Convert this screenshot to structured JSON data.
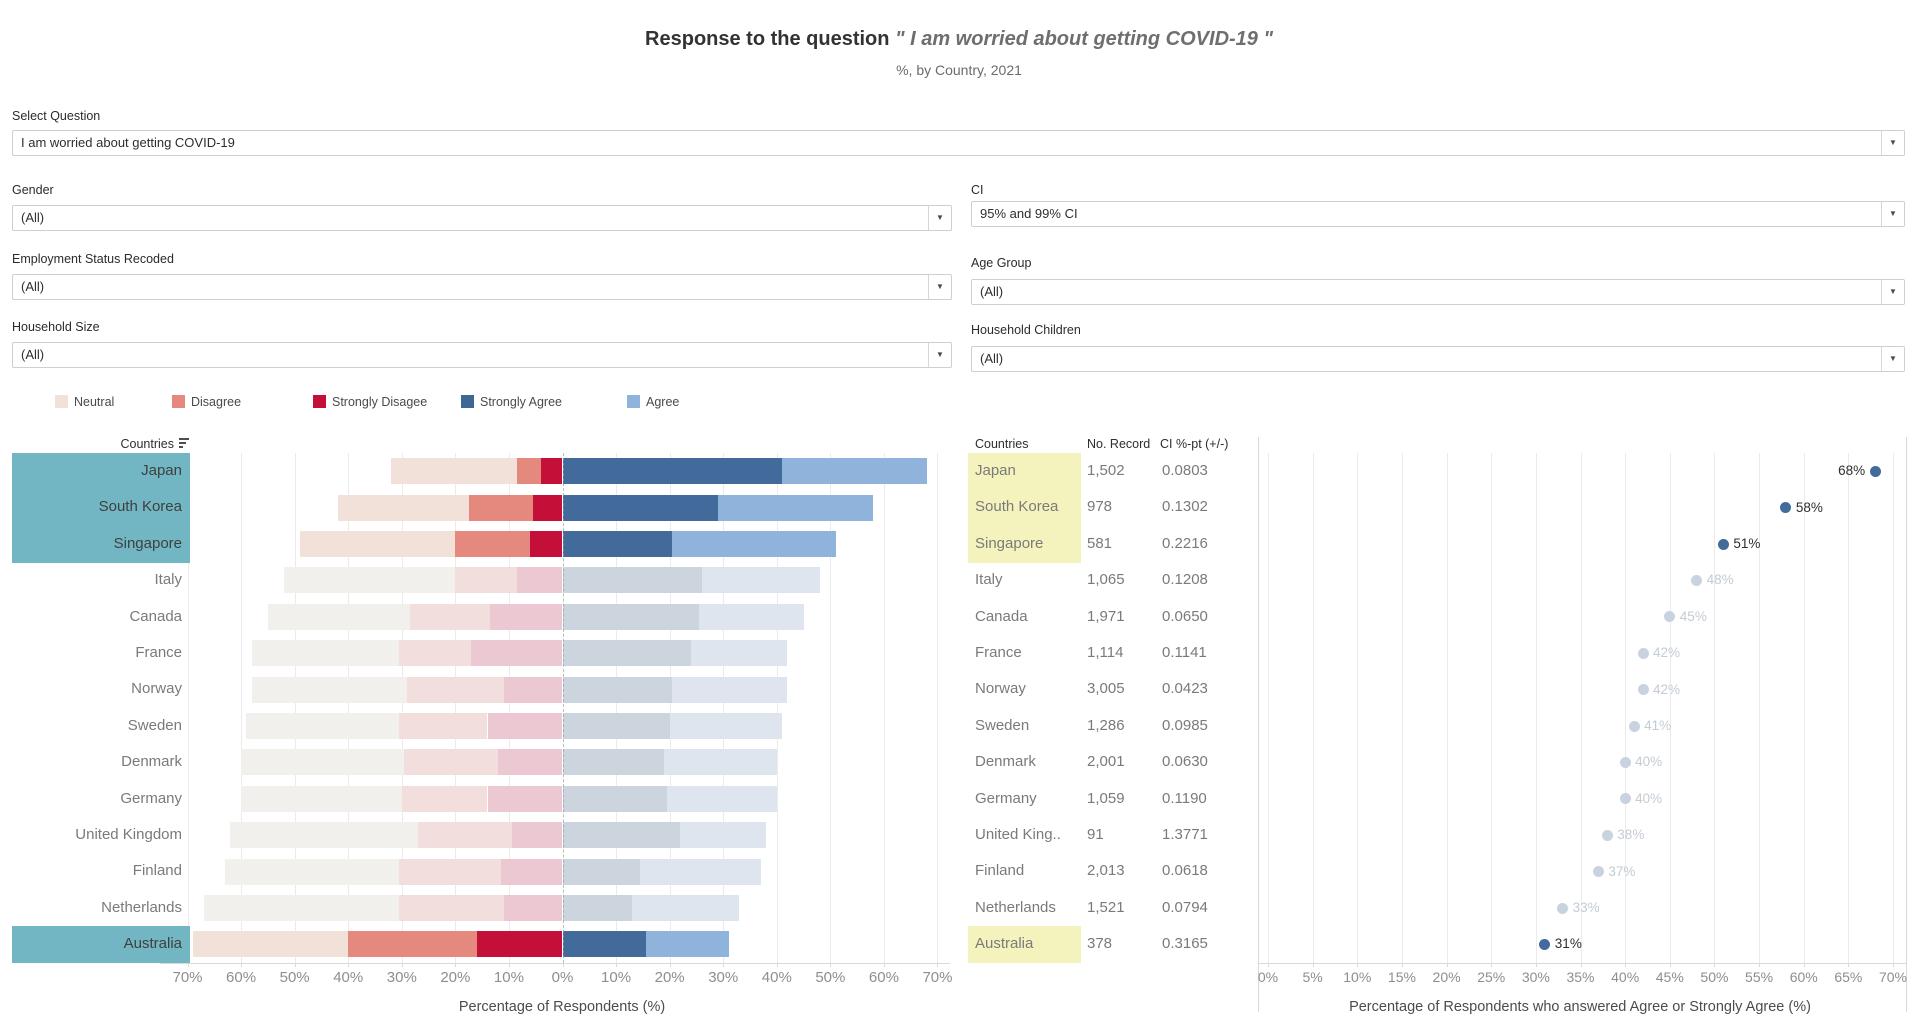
{
  "header": {
    "title_prefix": "Response to the question",
    "title_quote": "\" I am worried about getting COVID-19 \"",
    "subtitle": "%, by Country, 2021"
  },
  "filters": {
    "select_question": {
      "label": "Select Question",
      "value": "I am worried about getting COVID-19"
    },
    "gender": {
      "label": "Gender",
      "value": "(All)"
    },
    "ci": {
      "label": "CI",
      "value": "95% and 99% CI"
    },
    "employment": {
      "label": "Employment Status Recoded",
      "value": "(All)"
    },
    "age_group": {
      "label": "Age Group",
      "value": "(All)"
    },
    "household_size": {
      "label": "Household Size",
      "value": "(All)"
    },
    "household_children": {
      "label": "Household Children",
      "value": "(All)"
    }
  },
  "legend": {
    "items": [
      {
        "label": "Neutral",
        "color": "#f1e1d9"
      },
      {
        "label": "Disagree",
        "color": "#e5897f"
      },
      {
        "label": "Strongly Disagee",
        "color": "#c41038"
      },
      {
        "label": "Strongly Agree",
        "color": "#3d6795"
      },
      {
        "label": "Agree",
        "color": "#8fb3da"
      }
    ]
  },
  "icons": {
    "dropdown_arrow": "▼",
    "sort": "descending-bars"
  },
  "colors": {
    "highlight_label_bg": "#71b6c2",
    "highlight_table_bg": "#f4f3bd",
    "bar": {
      "Neutral": "#f1e1d9",
      "Disagree": "#e5897f",
      "Strongly Disagee": "#c41038",
      "Strongly Agree": "#426a9b",
      "Agree": "#8fb3da"
    },
    "bar_faded": {
      "Neutral": "#f2f0ed",
      "Disagree": "#f2dedd",
      "Strongly Disagee": "#ecc9d2",
      "Strongly Agree": "#ccd5de",
      "Agree": "#dee5ee"
    },
    "dot": "#426a9b",
    "dot_faded": "#c9d3e0",
    "dot_label": "#2e2e2e",
    "dot_label_faded": "#c4cbd4",
    "row_label": "#7a7a7a",
    "row_label_highlight": "#3f3f3f"
  },
  "chart_data": [
    {
      "type": "bar",
      "orientation": "horizontal-diverging",
      "row_header": "Countries",
      "categories": [
        "Japan",
        "South Korea",
        "Singapore",
        "Italy",
        "Canada",
        "France",
        "Norway",
        "Sweden",
        "Denmark",
        "Germany",
        "United Kingdom",
        "Finland",
        "Netherlands",
        "Australia"
      ],
      "highlighted": [
        "Japan",
        "South Korea",
        "Singapore",
        "Australia"
      ],
      "series": [
        {
          "name": "Neutral",
          "side": "left",
          "values": [
            23.5,
            24.5,
            29,
            32,
            26.5,
            27.5,
            29,
            28.5,
            30.5,
            30,
            35,
            32.5,
            36.5,
            29
          ]
        },
        {
          "name": "Disagree",
          "side": "left",
          "values": [
            4.5,
            12,
            14,
            11.5,
            15,
            13.5,
            18,
            16.5,
            17.5,
            16,
            17.5,
            19,
            19.5,
            24
          ]
        },
        {
          "name": "Strongly Disagee",
          "side": "left",
          "values": [
            4,
            5.5,
            6,
            8.5,
            13.5,
            17,
            11,
            14,
            12,
            14,
            9.5,
            11.5,
            11,
            16
          ]
        },
        {
          "name": "Strongly Agree",
          "side": "right",
          "values": [
            41,
            29,
            20.5,
            26,
            25.5,
            24,
            20.5,
            20,
            19,
            19.5,
            22,
            14.5,
            13,
            15.5
          ]
        },
        {
          "name": "Agree",
          "side": "right",
          "values": [
            27,
            29,
            30.5,
            22,
            19.5,
            18,
            21.5,
            21,
            21,
            20.5,
            16,
            22.5,
            20,
            15.5
          ]
        }
      ],
      "xlabel": "Percentage of Respondents (%)",
      "x_ticks": [
        "70%",
        "60%",
        "50%",
        "40%",
        "30%",
        "20%",
        "10%",
        "0%",
        "10%",
        "20%",
        "30%",
        "40%",
        "50%",
        "60%",
        "70%"
      ],
      "xlim": [
        -70,
        70
      ],
      "grid": true
    },
    {
      "type": "table",
      "columns": [
        "Countries",
        "No. Record",
        "CI %-pt (+/-)"
      ],
      "rows": [
        [
          "Japan",
          "1,502",
          "0.0803"
        ],
        [
          "South Korea",
          "978",
          "0.1302"
        ],
        [
          "Singapore",
          "581",
          "0.2216"
        ],
        [
          "Italy",
          "1,065",
          "0.1208"
        ],
        [
          "Canada",
          "1,971",
          "0.0650"
        ],
        [
          "France",
          "1,114",
          "0.1141"
        ],
        [
          "Norway",
          "3,005",
          "0.0423"
        ],
        [
          "Sweden",
          "1,286",
          "0.0985"
        ],
        [
          "Denmark",
          "2,001",
          "0.0630"
        ],
        [
          "Germany",
          "1,059",
          "0.1190"
        ],
        [
          "United King..",
          "91",
          "1.3771"
        ],
        [
          "Finland",
          "2,013",
          "0.0618"
        ],
        [
          "Netherlands",
          "1,521",
          "0.0794"
        ],
        [
          "Australia",
          "378",
          "0.3165"
        ]
      ],
      "highlighted_rows": [
        "Japan",
        "South Korea",
        "Singapore",
        "Australia"
      ]
    },
    {
      "type": "scatter",
      "categories": [
        "Japan",
        "South Korea",
        "Singapore",
        "Italy",
        "Canada",
        "France",
        "Norway",
        "Sweden",
        "Denmark",
        "Germany",
        "United Kingdom",
        "Finland",
        "Netherlands",
        "Australia"
      ],
      "values": [
        68,
        58,
        51,
        48,
        45,
        42,
        42,
        41,
        40,
        40,
        38,
        37,
        33,
        31
      ],
      "labels": [
        "68%",
        "58%",
        "51%",
        "48%",
        "45%",
        "42%",
        "42%",
        "41%",
        "40%",
        "40%",
        "38%",
        "37%",
        "33%",
        "31%"
      ],
      "highlighted": [
        "Japan",
        "South Korea",
        "Singapore",
        "Australia"
      ],
      "xlabel": "Percentage of Respondents who answered Agree or Strongly Agree (%)",
      "x_ticks": [
        "0%",
        "5%",
        "10%",
        "15%",
        "20%",
        "25%",
        "30%",
        "35%",
        "40%",
        "45%",
        "50%",
        "55%",
        "60%",
        "65%",
        "70%"
      ],
      "xlim": [
        0,
        70
      ],
      "grid": true
    }
  ]
}
